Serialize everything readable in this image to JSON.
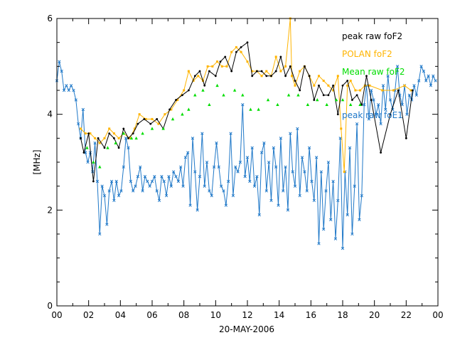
{
  "chart_data": {
    "type": "line",
    "title": "",
    "xlabel": "20-MAY-2006",
    "ylabel": "[MHz]",
    "xlim": [
      0,
      24
    ],
    "ylim": [
      0,
      6
    ],
    "x_ticks": [
      "00",
      "02",
      "04",
      "06",
      "08",
      "10",
      "12",
      "14",
      "16",
      "18",
      "20",
      "22",
      "00"
    ],
    "y_ticks": [
      "0",
      "2",
      "4",
      "6"
    ],
    "legend_position": "top-right",
    "series": [
      {
        "name": "peak raw foF2",
        "color": "#000000",
        "marker": "dot",
        "x": [
          1.5,
          1.7,
          2.0,
          2.3,
          2.6,
          3.0,
          3.3,
          3.6,
          3.9,
          4.2,
          4.5,
          4.8,
          5.1,
          5.5,
          5.9,
          6.3,
          6.7,
          7.1,
          7.5,
          7.9,
          8.3,
          8.7,
          9.0,
          9.3,
          9.6,
          10.0,
          10.3,
          10.6,
          11.0,
          11.3,
          11.6,
          12.0,
          12.3,
          12.6,
          12.9,
          13.2,
          13.5,
          13.8,
          14.1,
          14.4,
          14.7,
          15.0,
          15.3,
          15.6,
          15.9,
          16.2,
          16.5,
          16.8,
          17.1,
          17.4,
          17.7,
          18.0,
          18.3,
          18.6,
          18.9,
          19.2,
          19.5,
          19.8,
          20.4,
          21.0,
          21.5,
          22.0,
          22.4
        ],
        "y": [
          3.5,
          3.2,
          3.6,
          2.6,
          3.5,
          3.3,
          3.6,
          3.5,
          3.3,
          3.7,
          3.5,
          3.6,
          3.8,
          3.9,
          3.8,
          3.9,
          3.7,
          4.1,
          4.3,
          4.4,
          4.5,
          4.8,
          4.9,
          4.6,
          4.9,
          4.8,
          5.1,
          5.2,
          4.9,
          5.3,
          5.4,
          5.5,
          4.8,
          4.9,
          4.9,
          4.8,
          4.8,
          4.9,
          5.2,
          4.8,
          5.0,
          4.7,
          4.5,
          5.0,
          4.8,
          4.3,
          4.6,
          4.4,
          4.4,
          4.6,
          4.0,
          4.6,
          4.7,
          4.3,
          4.4,
          4.2,
          4.8,
          4.3,
          3.2,
          4.0,
          4.5,
          3.5,
          4.5
        ]
      },
      {
        "name": "POLAN foF2",
        "color": "#ffb400",
        "marker": "square",
        "x": [
          1.5,
          1.8,
          2.1,
          2.4,
          2.7,
          3.0,
          3.3,
          3.6,
          3.9,
          4.2,
          4.6,
          4.9,
          5.2,
          5.6,
          6.0,
          6.4,
          6.8,
          7.2,
          7.6,
          8.0,
          8.3,
          8.6,
          8.9,
          9.2,
          9.5,
          9.8,
          10.1,
          10.4,
          10.7,
          11.0,
          11.3,
          11.6,
          12.0,
          12.3,
          12.6,
          12.9,
          13.2,
          13.5,
          13.8,
          14.1,
          14.4,
          14.7,
          14.8,
          15.0,
          15.3,
          15.6,
          15.9,
          16.2,
          16.5,
          16.8,
          17.1,
          17.4,
          17.7,
          17.9,
          18.1,
          18.3,
          18.5,
          18.8,
          19.1,
          19.4,
          19.7,
          20.5,
          21.2,
          21.9,
          22.3
        ],
        "y": [
          3.7,
          3.6,
          3.6,
          3.5,
          3.4,
          3.5,
          3.7,
          3.6,
          3.5,
          3.6,
          3.5,
          3.7,
          4.0,
          3.9,
          3.9,
          3.8,
          4.0,
          4.1,
          4.3,
          4.5,
          4.9,
          4.7,
          4.8,
          4.7,
          5.0,
          5.0,
          5.1,
          5.0,
          5.0,
          5.3,
          5.4,
          5.3,
          5.1,
          4.9,
          4.9,
          4.8,
          4.9,
          4.8,
          5.2,
          4.9,
          5.0,
          6.0,
          4.8,
          4.6,
          4.9,
          5.0,
          4.8,
          4.6,
          4.8,
          4.7,
          4.6,
          4.5,
          4.8,
          3.7,
          2.8,
          4.6,
          4.7,
          4.5,
          4.5,
          4.6,
          4.6,
          4.5,
          4.5,
          4.6,
          4.5
        ]
      },
      {
        "name": "Mean raw foF2",
        "color": "#00dd00",
        "marker": "triangle",
        "x": [
          1.9,
          2.3,
          2.7,
          3.2,
          3.7,
          4.2,
          4.7,
          5.0,
          5.4,
          6.0,
          6.7,
          7.3,
          7.9,
          8.3,
          8.7,
          9.2,
          9.6,
          10.1,
          10.5,
          11.2,
          11.7,
          12.2,
          12.7,
          13.3,
          13.9,
          14.6,
          15.2,
          15.8,
          16.4,
          17.0,
          17.6,
          18.0,
          18.5,
          19.1
        ],
        "y": [
          3.3,
          3.0,
          2.9,
          3.3,
          3.4,
          3.6,
          3.5,
          3.5,
          3.6,
          3.7,
          3.7,
          3.9,
          4.0,
          4.1,
          4.4,
          4.5,
          4.2,
          4.6,
          4.4,
          4.5,
          4.4,
          4.1,
          4.1,
          4.3,
          4.2,
          4.4,
          4.4,
          4.2,
          4.3,
          4.2,
          4.3,
          4.3,
          4.2,
          4.2
        ]
      },
      {
        "name": "peak raw foE1",
        "color": "#1f78c8",
        "marker": "cross",
        "x": [
          0.0,
          0.15,
          0.3,
          0.45,
          0.6,
          0.75,
          0.9,
          1.05,
          1.2,
          1.35,
          1.5,
          1.65,
          1.8,
          1.95,
          2.1,
          2.25,
          2.4,
          2.55,
          2.7,
          2.85,
          3.0,
          3.15,
          3.3,
          3.45,
          3.6,
          3.75,
          3.9,
          4.05,
          4.2,
          4.35,
          4.5,
          4.65,
          4.8,
          4.95,
          5.1,
          5.25,
          5.4,
          5.55,
          5.7,
          5.85,
          6.0,
          6.15,
          6.3,
          6.45,
          6.6,
          6.75,
          6.9,
          7.05,
          7.2,
          7.35,
          7.5,
          7.65,
          7.8,
          7.95,
          8.1,
          8.25,
          8.4,
          8.55,
          8.7,
          8.85,
          9.0,
          9.15,
          9.3,
          9.45,
          9.6,
          9.75,
          9.9,
          10.05,
          10.2,
          10.35,
          10.5,
          10.65,
          10.8,
          10.95,
          11.1,
          11.25,
          11.4,
          11.55,
          11.7,
          11.85,
          12.0,
          12.15,
          12.3,
          12.45,
          12.6,
          12.75,
          12.9,
          13.05,
          13.2,
          13.35,
          13.5,
          13.65,
          13.8,
          13.95,
          14.1,
          14.25,
          14.4,
          14.55,
          14.7,
          14.85,
          15.0,
          15.15,
          15.3,
          15.45,
          15.6,
          15.75,
          15.9,
          16.05,
          16.2,
          16.35,
          16.5,
          16.65,
          16.8,
          16.95,
          17.1,
          17.25,
          17.4,
          17.55,
          17.7,
          17.85,
          18.0,
          18.15,
          18.3,
          18.45,
          18.6,
          18.75,
          18.9,
          19.05,
          19.2,
          19.35,
          19.5,
          19.65,
          19.8,
          19.95,
          20.1,
          20.25,
          20.4,
          20.55,
          20.7,
          20.85,
          21.0,
          21.15,
          21.3,
          21.45,
          21.6,
          21.75,
          21.9,
          22.05,
          22.2,
          22.35,
          22.5,
          22.65,
          22.8,
          22.95,
          23.1,
          23.25,
          23.4,
          23.55,
          23.7,
          23.85
        ],
        "y": [
          4.7,
          5.1,
          4.9,
          4.5,
          4.6,
          4.5,
          4.6,
          4.5,
          4.3,
          3.8,
          3.5,
          4.1,
          3.2,
          3.0,
          3.2,
          2.8,
          3.4,
          2.6,
          1.5,
          2.5,
          2.3,
          1.7,
          2.4,
          2.6,
          2.2,
          2.6,
          2.3,
          2.4,
          2.9,
          3.5,
          3.3,
          2.6,
          2.4,
          2.5,
          2.7,
          2.9,
          2.4,
          2.7,
          2.6,
          2.5,
          2.6,
          2.7,
          2.4,
          2.2,
          2.7,
          2.6,
          2.3,
          2.7,
          2.5,
          2.8,
          2.7,
          2.6,
          2.9,
          2.5,
          3.1,
          3.2,
          2.1,
          3.5,
          2.8,
          2.0,
          2.7,
          3.6,
          2.5,
          3.0,
          2.4,
          2.3,
          2.9,
          3.4,
          2.9,
          2.5,
          2.4,
          2.1,
          2.6,
          3.6,
          2.3,
          2.9,
          2.8,
          3.0,
          4.2,
          2.7,
          3.1,
          2.6,
          3.3,
          2.5,
          2.7,
          1.9,
          3.2,
          3.4,
          2.4,
          3.0,
          2.2,
          3.3,
          2.9,
          2.1,
          3.5,
          2.4,
          2.9,
          2.0,
          3.6,
          2.8,
          2.5,
          3.7,
          2.3,
          3.1,
          2.8,
          2.4,
          3.3,
          2.6,
          2.2,
          3.1,
          1.3,
          2.8,
          1.6,
          2.4,
          3.0,
          1.8,
          2.6,
          1.4,
          2.2,
          3.5,
          1.2,
          2.8,
          1.9,
          3.3,
          1.5,
          2.5,
          3.8,
          1.8,
          2.3,
          4.2,
          4.6,
          3.9,
          4.5,
          4.3,
          4.0,
          4.2,
          3.8,
          4.6,
          4.1,
          4.8,
          4.3,
          4.1,
          4.5,
          5.0,
          4.4,
          4.2,
          4.6,
          4.0,
          4.4,
          4.3,
          4.6,
          4.4,
          4.7,
          5.0,
          4.9,
          4.7,
          4.8,
          4.6,
          4.8,
          4.7
        ]
      }
    ]
  }
}
